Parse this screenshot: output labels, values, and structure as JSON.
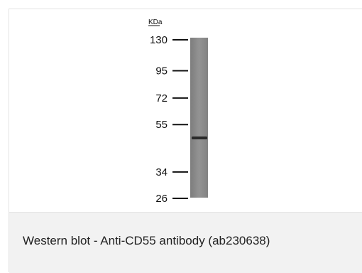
{
  "figure": {
    "unit_label": "KDa",
    "markers": [
      {
        "label": "130",
        "kda": 130
      },
      {
        "label": "95",
        "kda": 95
      },
      {
        "label": "72",
        "kda": 72
      },
      {
        "label": "55",
        "kda": 55
      },
      {
        "label": "34",
        "kda": 34
      },
      {
        "label": "26",
        "kda": 26
      }
    ],
    "band": {
      "kda": 48
    }
  },
  "caption": {
    "text": "Western blot - Anti-CD55 antibody (ab230638)"
  },
  "colors": {
    "lane": "#8c8c8c",
    "band": "#2a2a2a",
    "caption_bg": "#f2f2f2",
    "border": "#e3e3e3"
  }
}
